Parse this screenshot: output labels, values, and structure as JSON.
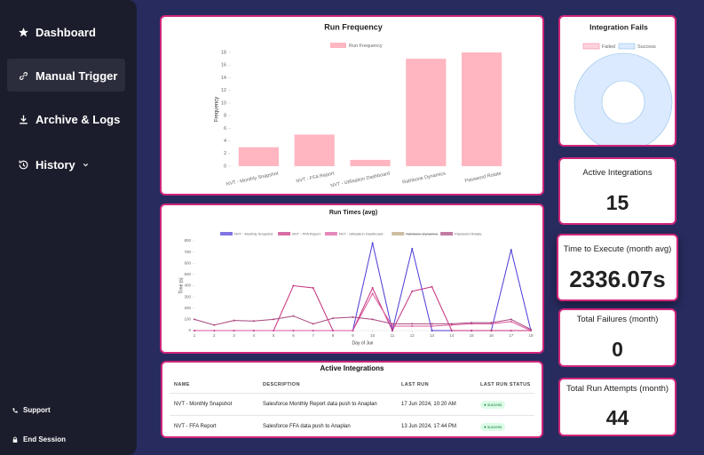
{
  "sidebar": {
    "nav": [
      "Dashboard",
      "Manual Trigger",
      "Archive & Logs",
      "History"
    ],
    "footer": [
      "Support",
      "End Session"
    ]
  },
  "chart_data": [
    {
      "type": "bar",
      "title": "Run Frequency",
      "categories": [
        "NVT - Monthly Snapshot",
        "NVT - FFA Report",
        "NVT - Utilisation Dashboard",
        "Rathbone Dynamics",
        "Password Rotate"
      ],
      "series": [
        {
          "name": "Run Frequency",
          "color": "#ffb6c1",
          "values": [
            3,
            5,
            1,
            17,
            18
          ]
        }
      ],
      "ylabel": "Frequency",
      "ylim": [
        0,
        18
      ],
      "yticks": [
        0,
        2,
        4,
        6,
        8,
        10,
        12,
        14,
        16,
        18
      ],
      "grid": false
    },
    {
      "type": "line",
      "title": "Run Times (avg)",
      "x": [
        1,
        2,
        3,
        4,
        5,
        6,
        7,
        8,
        9,
        10,
        11,
        12,
        13,
        14,
        15,
        16,
        17,
        18
      ],
      "series": [
        {
          "name": "NVT - Monthly Snapshot",
          "color": "#4b3bd6",
          "values": [
            0,
            0,
            0,
            0,
            0,
            0,
            0,
            0,
            0,
            780,
            0,
            730,
            0,
            0,
            0,
            0,
            720,
            0
          ]
        },
        {
          "name": "NVT - FFA Report",
          "color": "#c4317d",
          "values": [
            0,
            0,
            0,
            0,
            0,
            400,
            380,
            0,
            0,
            380,
            0,
            350,
            390,
            0,
            0,
            0,
            0,
            0
          ]
        },
        {
          "name": "NVT - Utilisation Dashboard",
          "color": "#d9559b",
          "values": [
            0,
            0,
            0,
            0,
            0,
            0,
            0,
            0,
            0,
            330,
            40,
            40,
            40,
            50,
            60,
            60,
            80,
            0
          ]
        },
        {
          "name": "Rathbone Dynamics",
          "color": "#b8a27a",
          "hidden": true,
          "values": [
            null,
            null,
            null,
            null,
            null,
            null,
            null,
            null,
            null,
            null,
            null,
            null,
            null,
            null,
            null,
            null,
            null,
            null
          ]
        },
        {
          "name": "Password Rotate",
          "color": "#a8457e",
          "values": [
            100,
            50,
            90,
            85,
            100,
            130,
            60,
            110,
            120,
            100,
            60,
            60,
            60,
            60,
            70,
            70,
            100,
            10
          ]
        }
      ],
      "xlabel": "Day of Jun",
      "ylabel": "Time (s)",
      "xlim": [
        1,
        18
      ],
      "xticks": [
        1,
        2,
        3,
        4,
        5,
        6,
        7,
        8,
        9,
        10,
        11,
        12,
        13,
        14,
        15,
        16,
        17,
        18
      ],
      "ylim": [
        0,
        800
      ],
      "yticks": [
        0,
        100,
        200,
        300,
        400,
        500,
        600,
        700,
        800
      ],
      "grid": false
    },
    {
      "type": "pie",
      "title": "Integration Fails",
      "categories": [
        "Failed",
        "Success"
      ],
      "values": [
        0,
        44
      ],
      "colors": [
        "#ffd1dc",
        "#dbeafe"
      ],
      "border_colors": [
        "#f08aa4",
        "#8fc0e8"
      ],
      "donut": true
    }
  ],
  "table": {
    "title": "Active Integrations",
    "columns": [
      "NAME",
      "DESCRIPTION",
      "LAST RUN",
      "LAST RUN STATUS"
    ],
    "rows": [
      [
        "NVT - Monthly Snapshot",
        "Salesforce Monthly Report data push to Anaplan",
        "17 Jun 2024, 10:20 AM",
        "success"
      ],
      [
        "NVT - FFA Report",
        "Salesforce FFA data push to Anaplan",
        "13 Jun 2024, 17:44 PM",
        "success"
      ]
    ]
  },
  "stats": [
    {
      "label": "Active Integrations",
      "value": "15"
    },
    {
      "label": "Time to Execute (month avg)",
      "value": "2336.07s"
    },
    {
      "label": "Total Failures (month)",
      "value": "0"
    },
    {
      "label": "Total Run Attempts (month)",
      "value": "44"
    }
  ]
}
